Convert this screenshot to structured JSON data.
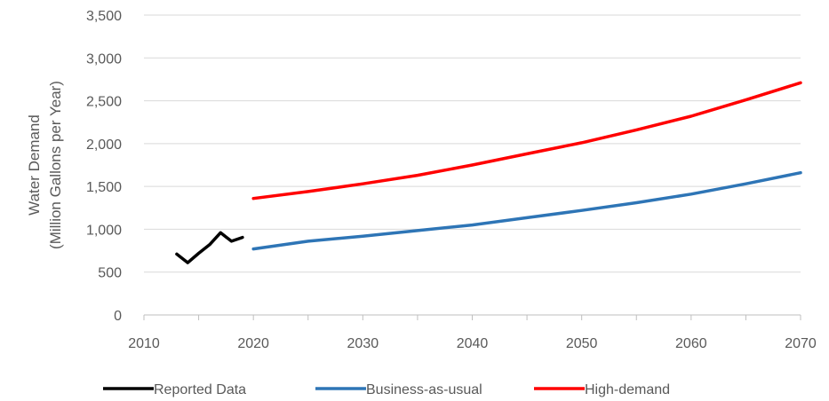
{
  "chart_data": {
    "type": "line",
    "ylabel": "Water Demand",
    "ylabel_line2": "(Million Gallons per Year)",
    "xlabel": "",
    "xlim": [
      2010,
      2070
    ],
    "ylim": [
      0,
      3500
    ],
    "x_ticks": [
      2010,
      2020,
      2030,
      2040,
      2050,
      2060,
      2070
    ],
    "x_tick_labels": [
      "2010",
      "2020",
      "2030",
      "2040",
      "2050",
      "2060",
      "2070"
    ],
    "y_ticks": [
      0,
      500,
      1000,
      1500,
      2000,
      2500,
      3000,
      3500
    ],
    "y_tick_labels": [
      "0",
      "500",
      "1,000",
      "1,500",
      "2,000",
      "2,500",
      "3,000",
      "3,500"
    ],
    "grid": "horizontal",
    "legend_position": "bottom",
    "series": [
      {
        "name": "Reported Data",
        "color": "#000000",
        "points": [
          [
            2013,
            710
          ],
          [
            2014,
            610
          ],
          [
            2015,
            720
          ],
          [
            2016,
            820
          ],
          [
            2017,
            960
          ],
          [
            2018,
            860
          ],
          [
            2019,
            905
          ]
        ]
      },
      {
        "name": "Business-as-usual",
        "color": "#2E75B6",
        "points": [
          [
            2020,
            770
          ],
          [
            2025,
            860
          ],
          [
            2030,
            920
          ],
          [
            2035,
            985
          ],
          [
            2040,
            1050
          ],
          [
            2045,
            1135
          ],
          [
            2050,
            1220
          ],
          [
            2055,
            1310
          ],
          [
            2060,
            1410
          ],
          [
            2065,
            1530
          ],
          [
            2070,
            1660
          ]
        ]
      },
      {
        "name": "High-demand",
        "color": "#FF0000",
        "points": [
          [
            2020,
            1360
          ],
          [
            2025,
            1440
          ],
          [
            2030,
            1530
          ],
          [
            2035,
            1630
          ],
          [
            2040,
            1750
          ],
          [
            2045,
            1880
          ],
          [
            2050,
            2010
          ],
          [
            2055,
            2160
          ],
          [
            2060,
            2320
          ],
          [
            2065,
            2510
          ],
          [
            2070,
            2710
          ]
        ]
      }
    ]
  }
}
